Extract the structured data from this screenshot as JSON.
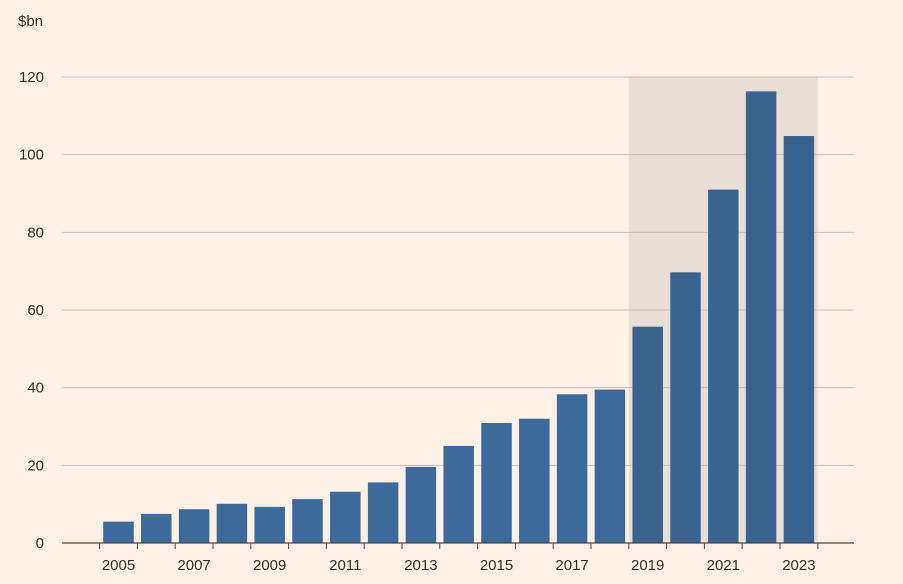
{
  "chart_data": {
    "type": "bar",
    "unit_label": "$bn",
    "categories": [
      "2005",
      "2006",
      "2007",
      "2008",
      "2009",
      "2010",
      "2011",
      "2012",
      "2013",
      "2014",
      "2015",
      "2016",
      "2017",
      "2018",
      "2019",
      "2020",
      "2021",
      "2022",
      "2023"
    ],
    "values": [
      5.5,
      7.5,
      8.7,
      10.1,
      9.3,
      11.3,
      13.2,
      15.6,
      19.6,
      25.0,
      30.9,
      32.0,
      38.3,
      39.5,
      55.7,
      69.7,
      91.0,
      116.3,
      104.8
    ],
    "x_tick_labels": [
      "2005",
      "2007",
      "2009",
      "2011",
      "2013",
      "2015",
      "2017",
      "2019",
      "2021",
      "2023"
    ],
    "y_ticks": [
      0,
      20,
      40,
      60,
      80,
      100,
      120
    ],
    "ylim": [
      0,
      120
    ],
    "highlight_range": [
      "2019",
      "2023"
    ],
    "colors": {
      "bar": "#3D6A9A",
      "highlight_band": "#E9DED6",
      "gridline": "#C9BDB2",
      "background": "#FFF1E5"
    }
  }
}
